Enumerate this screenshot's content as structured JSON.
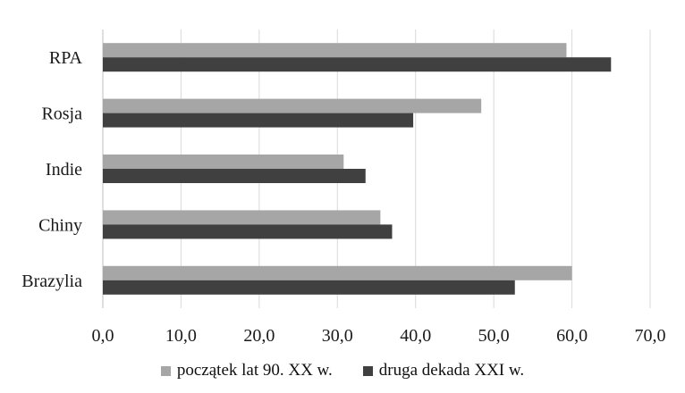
{
  "chart_data": {
    "type": "bar",
    "orientation": "horizontal",
    "categories": [
      "Brazylia",
      "Chiny",
      "Indie",
      "Rosja",
      "RPA"
    ],
    "series": [
      {
        "name": "początek lat 90. XX w.",
        "values": [
          60.0,
          35.5,
          30.8,
          48.4,
          59.3
        ],
        "color": "#a6a6a6"
      },
      {
        "name": "druga dekada XXI w.",
        "values": [
          52.7,
          37.0,
          33.6,
          39.7,
          65.0
        ],
        "color": "#404040"
      }
    ],
    "xlim": [
      0,
      70
    ],
    "x_ticks": [
      "0,0",
      "10,0",
      "20,0",
      "30,0",
      "40,0",
      "50,0",
      "60,0",
      "70,0"
    ],
    "grid": "vertical",
    "legend_position": "bottom"
  }
}
